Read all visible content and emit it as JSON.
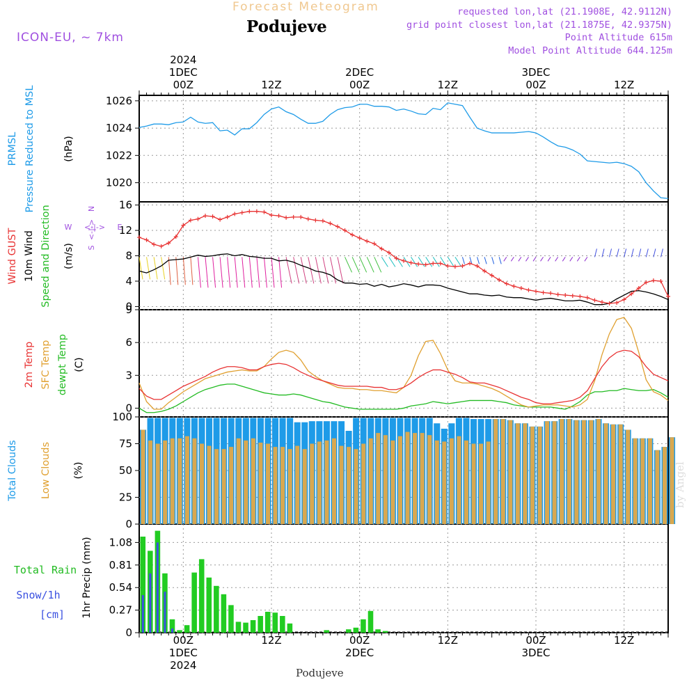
{
  "header": {
    "subtitle": "Forecast Meteogram",
    "station": "Podujeve",
    "model": "ICON-EU, ~ 7km",
    "requested": "requested lon,lat (21.1908E, 42.9112N)",
    "gridpoint": "grid point closest lon,lat (21.1875E, 42.9375N)",
    "altitude": "Point Altitude 615m",
    "model_altitude": "Model Point Altitude 644.125m"
  },
  "footer": {
    "station": "Podujeve",
    "credit": "by Angel"
  },
  "time_axis": {
    "top_labels": [
      {
        "t": 6,
        "lines": [
          "2024",
          "1DEC",
          "00Z"
        ]
      },
      {
        "t": 18,
        "lines": [
          "12Z"
        ]
      },
      {
        "t": 30,
        "lines": [
          "2DEC",
          "00Z"
        ]
      },
      {
        "t": 42,
        "lines": [
          "12Z"
        ]
      },
      {
        "t": 54,
        "lines": [
          "3DEC",
          "00Z"
        ]
      },
      {
        "t": 66,
        "lines": [
          "12Z"
        ]
      }
    ],
    "bottom_labels": [
      {
        "t": 6,
        "lines": [
          "00Z",
          "1DEC",
          "2024"
        ]
      },
      {
        "t": 18,
        "lines": [
          "12Z"
        ]
      },
      {
        "t": 30,
        "lines": [
          "00Z",
          "2DEC"
        ]
      },
      {
        "t": 42,
        "lines": [
          "12Z"
        ]
      },
      {
        "t": 54,
        "lines": [
          "00Z",
          "3DEC"
        ]
      },
      {
        "t": 66,
        "lines": [
          "12Z"
        ]
      }
    ]
  },
  "panel_labels": {
    "pressure": [
      {
        "text": "PRMSL",
        "color": "#1e9be8"
      },
      {
        "text": "Pressure Reduced to MSL",
        "color": "#1e9be8"
      },
      {
        "text": "(hPa)",
        "color": "#000000"
      }
    ],
    "wind": [
      {
        "text": "Wind GUST",
        "color": "#e83232"
      },
      {
        "text": "10m Wind",
        "color": "#000000"
      },
      {
        "text": "Speed and Direction",
        "color": "#22bb22"
      },
      {
        "text": "(m/s)",
        "color": "#000000"
      }
    ],
    "compass": {
      "n": "N",
      "s": "S",
      "w": "W",
      "e": "E",
      "mid": "<-|->",
      "color": "#a050e0"
    },
    "temp": [
      {
        "text": "2m Temp",
        "color": "#e83232"
      },
      {
        "text": "SFC Temp",
        "color": "#e0a030"
      },
      {
        "text": "dewpt Temp",
        "color": "#22bb22"
      },
      {
        "text": "(C)",
        "color": "#000000"
      }
    ],
    "clouds": [
      {
        "text": "Total Clouds",
        "color": "#1e9be8"
      },
      {
        "text": "Low Clouds",
        "color": "#e0a030"
      },
      {
        "text": "(%)",
        "color": "#000000"
      }
    ],
    "precip_legend": [
      {
        "text": "Total  Rain",
        "color": "#22bb22"
      },
      {
        "text": "Snow/1h",
        "color": "#3a50e0"
      },
      {
        "text": "[cm]",
        "color": "#3a50e0"
      }
    ],
    "precip_axis": "1hr Precip (mm)"
  },
  "colors": {
    "pressure": "#1e9be8",
    "gust": "#e83232",
    "wind": "#000000",
    "t2m": "#e83232",
    "tsfc": "#e0a030",
    "dew": "#22bb22",
    "total_cloud": "#1e9be8",
    "low_cloud": "#d8a850",
    "rain": "#22cc22",
    "snow": "#3a50e0",
    "header_purple": "#a050e0",
    "subtitle": "#f0c890"
  },
  "chart_data": [
    {
      "type": "line",
      "name": "pressure",
      "ylabel": "(hPa)",
      "ylim": [
        1018.6,
        1026.4
      ],
      "yticks": [
        1020,
        1022,
        1024,
        1026
      ],
      "x_hours_from_start": [
        0,
        1,
        2,
        3,
        4,
        5,
        6,
        7,
        8,
        9,
        10,
        11,
        12,
        13,
        14,
        15,
        16,
        17,
        18,
        19,
        20,
        21,
        22,
        23,
        24,
        25,
        26,
        27,
        28,
        29,
        30,
        31,
        32,
        33,
        34,
        35,
        36,
        37,
        38,
        39,
        40,
        41,
        42,
        43,
        44,
        45,
        46,
        47,
        48,
        49,
        50,
        51,
        52,
        53,
        54,
        55,
        56,
        57,
        58,
        59,
        60,
        61,
        62,
        63,
        64,
        65,
        66,
        67,
        68,
        69,
        70,
        71,
        72
      ],
      "values": [
        1024.05,
        1024.15,
        1024.3,
        1024.3,
        1024.25,
        1024.4,
        1024.45,
        1024.8,
        1024.45,
        1024.35,
        1024.4,
        1023.8,
        1023.85,
        1023.5,
        1023.95,
        1023.95,
        1024.4,
        1025.0,
        1025.4,
        1025.55,
        1025.2,
        1025.0,
        1024.65,
        1024.35,
        1024.35,
        1024.5,
        1025.0,
        1025.35,
        1025.5,
        1025.55,
        1025.75,
        1025.75,
        1025.6,
        1025.6,
        1025.55,
        1025.3,
        1025.4,
        1025.25,
        1025.05,
        1025.0,
        1025.45,
        1025.35,
        1025.85,
        1025.75,
        1025.65,
        1024.8,
        1024.0,
        1023.8,
        1023.65,
        1023.65,
        1023.65,
        1023.65,
        1023.7,
        1023.75,
        1023.65,
        1023.35,
        1023.0,
        1022.7,
        1022.6,
        1022.4,
        1022.1,
        1021.6,
        1021.55,
        1021.5,
        1021.45,
        1021.5,
        1021.4,
        1021.2,
        1020.8,
        1020.0,
        1019.4,
        1018.9,
        1018.85
      ]
    },
    {
      "type": "line",
      "name": "wind",
      "ylabel": "(m/s)",
      "ylim": [
        -0.5,
        16.5
      ],
      "yticks": [
        0,
        4,
        8,
        12,
        16
      ],
      "series": [
        {
          "name": "Wind GUST",
          "values": [
            10.9,
            10.5,
            9.8,
            9.5,
            10.0,
            11.0,
            12.8,
            13.6,
            13.8,
            14.3,
            14.2,
            13.7,
            14.1,
            14.6,
            14.8,
            15.0,
            15.0,
            14.9,
            14.4,
            14.3,
            14.0,
            14.1,
            14.1,
            13.8,
            13.6,
            13.5,
            13.1,
            12.6,
            12.0,
            11.3,
            10.8,
            10.3,
            9.9,
            9.1,
            8.5,
            7.6,
            7.2,
            6.9,
            6.7,
            6.6,
            6.8,
            6.8,
            6.4,
            6.3,
            6.4,
            6.8,
            6.4,
            5.6,
            4.9,
            4.2,
            3.6,
            3.2,
            2.9,
            2.6,
            2.4,
            2.2,
            2.1,
            1.9,
            1.8,
            1.7,
            1.6,
            1.4,
            1.0,
            0.7,
            0.5,
            0.6,
            1.1,
            2.0,
            2.9,
            3.8,
            4.1,
            4.0,
            1.6
          ]
        },
        {
          "name": "10m Wind",
          "values": [
            5.6,
            5.3,
            5.8,
            6.4,
            7.3,
            7.4,
            7.5,
            7.8,
            8.1,
            7.9,
            8.0,
            8.2,
            8.3,
            8.0,
            8.2,
            7.9,
            7.8,
            7.6,
            7.6,
            7.2,
            7.3,
            7.0,
            6.5,
            6.1,
            5.6,
            5.4,
            5.0,
            4.2,
            3.7,
            3.7,
            3.5,
            3.6,
            3.2,
            3.5,
            3.1,
            3.3,
            3.6,
            3.4,
            3.1,
            3.4,
            3.4,
            3.3,
            2.9,
            2.6,
            2.3,
            2.0,
            2.0,
            1.8,
            1.7,
            1.8,
            1.5,
            1.4,
            1.4,
            1.2,
            1.0,
            1.2,
            1.3,
            1.1,
            0.9,
            0.9,
            1.0,
            0.7,
            0.3,
            0.3,
            0.5,
            1.2,
            1.8,
            2.4,
            2.5,
            2.3,
            2.0,
            1.6,
            1.1
          ]
        }
      ],
      "direction_arrow_hues": [
        "yellow",
        "green",
        "red",
        "magenta",
        "green",
        "cyan",
        "blue",
        "purple"
      ]
    },
    {
      "type": "line",
      "name": "temperature",
      "ylabel": "(C)",
      "ylim": [
        -0.8,
        9.0
      ],
      "yticks": [
        0,
        3,
        6,
        9
      ],
      "series": [
        {
          "name": "2m Temp",
          "values": [
            1.8,
            1.1,
            0.8,
            0.8,
            1.2,
            1.6,
            2.0,
            2.3,
            2.6,
            2.9,
            3.3,
            3.6,
            3.8,
            3.8,
            3.7,
            3.5,
            3.5,
            3.8,
            4.0,
            4.1,
            4.0,
            3.7,
            3.3,
            3.0,
            2.7,
            2.5,
            2.3,
            2.1,
            2.0,
            2.0,
            2.0,
            2.0,
            1.9,
            1.9,
            1.7,
            1.7,
            1.9,
            2.3,
            2.8,
            3.2,
            3.5,
            3.5,
            3.3,
            3.1,
            2.8,
            2.4,
            2.3,
            2.3,
            2.1,
            1.9,
            1.6,
            1.3,
            1.0,
            0.8,
            0.5,
            0.4,
            0.4,
            0.5,
            0.6,
            0.7,
            1.0,
            1.6,
            2.7,
            3.8,
            4.6,
            5.1,
            5.3,
            5.2,
            4.7,
            3.8,
            3.1,
            2.8,
            2.5
          ]
        },
        {
          "name": "SFC Temp",
          "values": [
            2.3,
            0.6,
            -0.1,
            -0.1,
            0.5,
            1.0,
            1.5,
            1.9,
            2.3,
            2.7,
            2.9,
            3.1,
            3.3,
            3.4,
            3.5,
            3.4,
            3.4,
            3.8,
            4.5,
            5.1,
            5.3,
            5.1,
            4.4,
            3.4,
            2.9,
            2.5,
            2.2,
            1.9,
            1.8,
            1.8,
            1.7,
            1.7,
            1.6,
            1.6,
            1.5,
            1.4,
            1.9,
            3.0,
            4.8,
            6.1,
            6.2,
            5.0,
            3.5,
            2.5,
            2.3,
            2.3,
            2.2,
            2.0,
            1.8,
            1.5,
            1.1,
            0.7,
            0.3,
            0.1,
            0.2,
            0.3,
            0.3,
            0.3,
            0.2,
            0.1,
            0.3,
            0.8,
            2.5,
            4.9,
            6.8,
            8.1,
            8.3,
            7.3,
            5.1,
            2.6,
            1.5,
            1.2,
            0.7
          ]
        },
        {
          "name": "dewpt Temp",
          "values": [
            0.0,
            -0.4,
            -0.4,
            -0.3,
            -0.1,
            0.2,
            0.6,
            1.0,
            1.4,
            1.7,
            1.9,
            2.1,
            2.2,
            2.2,
            2.0,
            1.8,
            1.6,
            1.4,
            1.3,
            1.2,
            1.2,
            1.3,
            1.2,
            1.0,
            0.8,
            0.6,
            0.5,
            0.3,
            0.1,
            0.0,
            -0.1,
            -0.1,
            -0.1,
            -0.1,
            -0.1,
            -0.1,
            0.0,
            0.2,
            0.3,
            0.4,
            0.6,
            0.5,
            0.4,
            0.5,
            0.6,
            0.7,
            0.7,
            0.7,
            0.7,
            0.6,
            0.5,
            0.3,
            0.2,
            0.1,
            0.1,
            0.1,
            0.1,
            0.0,
            -0.1,
            0.2,
            0.6,
            1.2,
            1.5,
            1.5,
            1.6,
            1.6,
            1.8,
            1.7,
            1.6,
            1.6,
            1.7,
            1.4,
            1.0
          ]
        }
      ]
    },
    {
      "type": "bar",
      "name": "clouds",
      "ylabel": "(%)",
      "ylim": [
        0,
        100
      ],
      "yticks": [
        0,
        25,
        50,
        75,
        100
      ],
      "series": [
        {
          "name": "Total Clouds",
          "values": [
            88,
            99,
            99,
            99,
            99,
            99,
            99,
            99,
            99,
            99,
            99,
            99,
            99,
            99,
            99,
            99,
            99,
            99,
            99,
            99,
            99,
            95,
            95,
            96,
            96,
            96,
            96,
            96,
            87,
            99,
            99,
            99,
            99,
            99,
            99,
            99,
            99,
            99,
            99,
            99,
            94,
            89,
            94,
            99,
            99,
            98,
            98,
            98,
            98,
            98,
            97,
            94,
            94,
            91,
            91,
            96,
            96,
            98,
            98,
            97,
            97,
            97,
            98,
            94,
            93,
            93,
            88,
            80,
            80,
            80,
            69,
            72,
            81
          ]
        },
        {
          "name": "Low Clouds",
          "values": [
            88,
            78,
            75,
            78,
            80,
            80,
            82,
            80,
            75,
            73,
            70,
            70,
            72,
            80,
            78,
            80,
            76,
            75,
            72,
            72,
            70,
            73,
            70,
            75,
            77,
            78,
            80,
            73,
            72,
            70,
            75,
            80,
            85,
            83,
            78,
            82,
            86,
            85,
            85,
            83,
            78,
            77,
            80,
            82,
            78,
            75,
            75,
            77,
            98,
            98,
            97,
            94,
            94,
            91,
            91,
            96,
            96,
            98,
            98,
            97,
            97,
            97,
            98,
            94,
            93,
            93,
            88,
            80,
            80,
            80,
            69,
            72,
            81
          ]
        }
      ]
    },
    {
      "type": "bar",
      "name": "precipitation",
      "ylabel": "1hr Precip (mm)",
      "ylim": [
        0,
        1.3
      ],
      "yticks": [
        0,
        0.27,
        0.54,
        0.81,
        1.08
      ],
      "series": [
        {
          "name": "Total Rain",
          "values": [
            1.15,
            0.98,
            1.22,
            0.71,
            0.16,
            0.03,
            0.09,
            0.72,
            0.88,
            0.66,
            0.56,
            0.46,
            0.33,
            0.13,
            0.12,
            0.15,
            0.2,
            0.25,
            0.24,
            0.2,
            0.11,
            0.0,
            0.0,
            0.0,
            0.0,
            0.03,
            0.0,
            0.0,
            0.04,
            0.06,
            0.16,
            0.26,
            0.04,
            0.02,
            0.0,
            0.0,
            0.0,
            0.0,
            0.0,
            0.0,
            0.0,
            0.0,
            0.0,
            0.0,
            0.0,
            0.0,
            0.0,
            0.0,
            0.0,
            0.0,
            0.0,
            0.0,
            0.0,
            0.0,
            0.0,
            0.0,
            0.0,
            0.0,
            0.0,
            0.0,
            0.0,
            0.0,
            0.0,
            0.0,
            0.0,
            0.0,
            0.0,
            0.0,
            0.0,
            0.0,
            0.0,
            0.0,
            0.0
          ]
        },
        {
          "name": "Snow/1h",
          "values": [
            0.45,
            0.71,
            1.08,
            0.49,
            0.05,
            0.0,
            0.0,
            0.0,
            0.0,
            0.0,
            0.0,
            0.0,
            0.0,
            0.0,
            0.0,
            0.0,
            0.0,
            0.0,
            0.0,
            0.0,
            0.0,
            0.0,
            0.0,
            0.0,
            0.0,
            0.0,
            0.0,
            0.0,
            0.0,
            0.0,
            0.0,
            0.0,
            0.0,
            0.0,
            0.0,
            0.0,
            0.0,
            0.0,
            0.0,
            0.0,
            0.0,
            0.0,
            0.0,
            0.0,
            0.0,
            0.0,
            0.0,
            0.0,
            0.0,
            0.0,
            0.0,
            0.0,
            0.0,
            0.0,
            0.0,
            0.0,
            0.0,
            0.0,
            0.0,
            0.0,
            0.0,
            0.0,
            0.0,
            0.0,
            0.0,
            0.0,
            0.0,
            0.0,
            0.0,
            0.0,
            0.0,
            0.0,
            0.0
          ]
        }
      ]
    }
  ]
}
